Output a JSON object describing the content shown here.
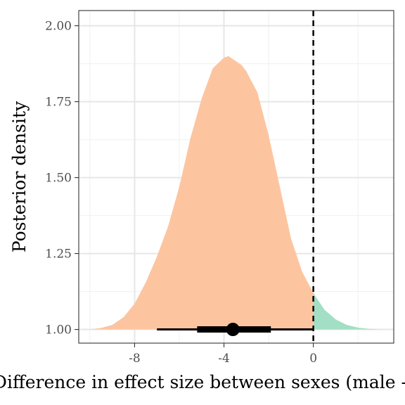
{
  "chart_data": {
    "type": "area",
    "title": "",
    "xlabel": "Difference in effect size between sexes (male - female)",
    "ylabel": "Posterior density",
    "xlim": [
      -10.5,
      3.6
    ],
    "ylim": [
      0.955,
      2.05
    ],
    "x_ticks": [
      -8,
      -4,
      0
    ],
    "x_tick_labels": [
      "-8",
      "-4",
      "0"
    ],
    "y_ticks": [
      1.0,
      1.25,
      1.5,
      1.75,
      2.0
    ],
    "y_tick_labels": [
      "1.00",
      "1.25",
      "1.50",
      "1.75",
      "2.00"
    ],
    "grid": true,
    "legend": "none",
    "density_baseline": 1.0,
    "density_curve": {
      "x": [
        -10.0,
        -9.5,
        -9.0,
        -8.5,
        -8.0,
        -7.5,
        -7.0,
        -6.5,
        -6.0,
        -5.5,
        -5.0,
        -4.5,
        -4.0,
        -3.8,
        -3.5,
        -3.2,
        -3.0,
        -2.5,
        -2.0,
        -1.5,
        -1.0,
        -0.5,
        0.0,
        0.5,
        1.0,
        1.5,
        2.0,
        2.5,
        3.0
      ],
      "y": [
        1.0,
        1.005,
        1.015,
        1.04,
        1.085,
        1.155,
        1.24,
        1.34,
        1.47,
        1.63,
        1.76,
        1.86,
        1.895,
        1.9,
        1.885,
        1.87,
        1.85,
        1.78,
        1.64,
        1.47,
        1.3,
        1.19,
        1.12,
        1.065,
        1.033,
        1.015,
        1.006,
        1.002,
        1.0
      ]
    },
    "region_split_x": 0,
    "region_colors": {
      "below_zero": "#fcc5a0",
      "above_zero": "#a2dfc4"
    },
    "reference_line_x": 0,
    "interval": {
      "point": -3.6,
      "inner": [
        -5.2,
        -1.9
      ],
      "outer": [
        -7.0,
        0.0
      ],
      "color": "#000000"
    }
  }
}
